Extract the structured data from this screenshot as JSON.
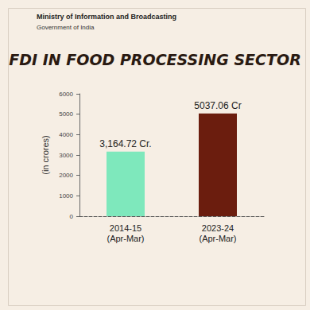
{
  "chart_data": {
    "type": "bar",
    "title": "FDI IN FOOD PROCESSING SECTOR",
    "annotations": [
      "Ministry of Information and Broadcasting",
      "Government of India"
    ],
    "y_label": "(in crores)",
    "categories": [
      "2014-15\n(Apr-Mar)",
      "2023-24\n(Apr-Mar)"
    ],
    "values": [
      3164.72,
      5037.06
    ],
    "value_labels": [
      "3,164.72 Cr.",
      "5037.06 Cr"
    ],
    "colors": [
      "#7ee8bc",
      "#6b1d0e"
    ],
    "ylim": [
      0,
      6000
    ],
    "yticks": [
      0,
      1000,
      2000,
      3000,
      4000,
      5000,
      6000
    ],
    "grid": false,
    "data_labels": true
  }
}
